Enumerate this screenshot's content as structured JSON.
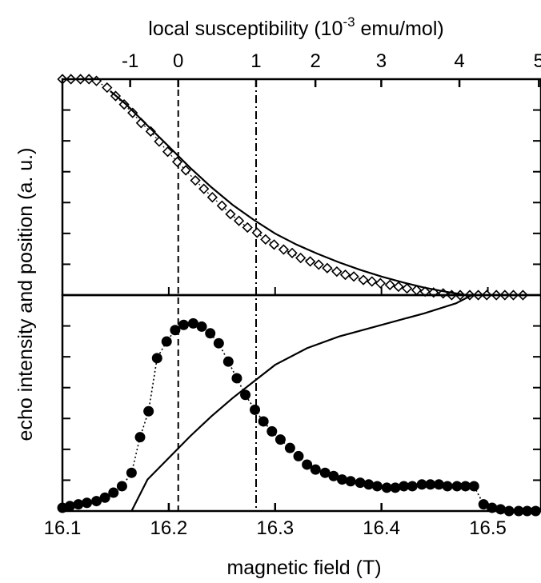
{
  "chart_data": {
    "type": "scatter",
    "xlabel": "magnetic field  (T)",
    "ylabel": "echo intensity and position  (a. u.)",
    "top_xlabel_main": "local susceptibility (10",
    "top_xlabel_exp": "-3",
    "top_xlabel_tail": " emu/mol)",
    "xlim": [
      16.1,
      16.55
    ],
    "x_ticks": [
      {
        "value": 16.1,
        "label": "16.1"
      },
      {
        "value": 16.2,
        "label": "16.2"
      },
      {
        "value": 16.3,
        "label": "16.3"
      },
      {
        "value": 16.4,
        "label": "16.4"
      },
      {
        "value": 16.5,
        "label": "16.5"
      }
    ],
    "top_ticks": [
      {
        "field": 16.1637,
        "label": "-1"
      },
      {
        "field": 16.2089,
        "label": "0"
      },
      {
        "field": 16.2821,
        "label": "1"
      },
      {
        "field": 16.3379,
        "label": "2"
      },
      {
        "field": 16.3998,
        "label": "3"
      },
      {
        "field": 16.4733,
        "label": "4"
      },
      {
        "field": 16.548,
        "label": "5"
      }
    ],
    "reference_lines": [
      {
        "field": 16.2089,
        "style": "dashed"
      },
      {
        "field": 16.2821,
        "style": "dash-dot"
      }
    ],
    "panels": [
      {
        "position": "top",
        "ylim": [
          0,
          1
        ],
        "series": [
          {
            "marker": "open-diamond",
            "x": [
              16.1,
              16.108,
              16.117,
              16.125,
              16.132,
              16.142,
              16.15,
              16.158,
              16.166,
              16.174,
              16.183,
              16.191,
              16.199,
              16.208,
              16.216,
              16.225,
              16.233,
              16.241,
              16.25,
              16.258,
              16.266,
              16.274,
              16.283,
              16.291,
              16.299,
              16.308,
              16.316,
              16.324,
              16.333,
              16.341,
              16.349,
              16.358,
              16.366,
              16.374,
              16.383,
              16.391,
              16.399,
              16.408,
              16.416,
              16.424,
              16.433,
              16.441,
              16.449,
              16.458,
              16.466,
              16.474,
              16.483,
              16.491,
              16.499,
              16.508,
              16.516,
              16.524,
              16.533
            ],
            "y": [
              1.0,
              1.0,
              1.0,
              1.0,
              0.992,
              0.961,
              0.922,
              0.883,
              0.844,
              0.797,
              0.758,
              0.711,
              0.664,
              0.617,
              0.578,
              0.531,
              0.492,
              0.453,
              0.414,
              0.375,
              0.344,
              0.313,
              0.289,
              0.258,
              0.234,
              0.211,
              0.195,
              0.172,
              0.156,
              0.141,
              0.125,
              0.109,
              0.094,
              0.086,
              0.07,
              0.063,
              0.055,
              0.047,
              0.039,
              0.031,
              0.023,
              0.016,
              0.012,
              0.008,
              0.0,
              0.0,
              0.0,
              0.0,
              0.0,
              0.0,
              0.0,
              0.0,
              0.0
            ]
          },
          {
            "marker": "solid-line",
            "x": [
              16.145,
              16.16,
              16.18,
              16.2,
              16.22,
              16.24,
              16.26,
              16.28,
              16.3,
              16.32,
              16.34,
              16.36,
              16.38,
              16.4,
              16.42,
              16.44,
              16.46,
              16.48
            ],
            "y": [
              0.945,
              0.883,
              0.785,
              0.688,
              0.59,
              0.5,
              0.418,
              0.348,
              0.285,
              0.234,
              0.191,
              0.152,
              0.117,
              0.086,
              0.059,
              0.035,
              0.016,
              0.0
            ]
          }
        ]
      },
      {
        "position": "bottom",
        "ylim": [
          0,
          1
        ],
        "series": [
          {
            "marker": "filled-circle",
            "x": [
              16.1,
              16.107,
              16.115,
              16.123,
              16.132,
              16.14,
              16.148,
              16.156,
              16.165,
              16.173,
              16.181,
              16.189,
              16.198,
              16.206,
              16.214,
              16.223,
              16.231,
              16.239,
              16.247,
              16.256,
              16.264,
              16.272,
              16.281,
              16.289,
              16.297,
              16.305,
              16.314,
              16.322,
              16.33,
              16.338,
              16.347,
              16.355,
              16.363,
              16.371,
              16.38,
              16.388,
              16.396,
              16.405,
              16.413,
              16.421,
              16.429,
              16.438,
              16.446,
              16.454,
              16.462,
              16.471,
              16.479,
              16.487,
              16.496,
              16.504,
              16.512,
              16.52,
              16.529,
              16.537,
              16.545
            ],
            "y": [
              0.015,
              0.023,
              0.031,
              0.038,
              0.046,
              0.062,
              0.085,
              0.115,
              0.177,
              0.342,
              0.462,
              0.708,
              0.785,
              0.838,
              0.862,
              0.869,
              0.854,
              0.823,
              0.777,
              0.692,
              0.615,
              0.538,
              0.469,
              0.415,
              0.369,
              0.331,
              0.292,
              0.254,
              0.215,
              0.192,
              0.177,
              0.162,
              0.146,
              0.138,
              0.131,
              0.123,
              0.115,
              0.108,
              0.108,
              0.115,
              0.115,
              0.123,
              0.123,
              0.123,
              0.115,
              0.115,
              0.115,
              0.115,
              0.031,
              0.015,
              0.008,
              0.0,
              0.0,
              0.0,
              0.0
            ]
          },
          {
            "marker": "solid-line",
            "x": [
              16.165,
              16.18,
              16.2,
              16.22,
              16.24,
              16.26,
              16.28,
              16.3,
              16.33,
              16.36,
              16.4,
              16.44,
              16.47,
              16.485
            ],
            "y": [
              0.0,
              0.146,
              0.246,
              0.346,
              0.438,
              0.523,
              0.6,
              0.677,
              0.754,
              0.808,
              0.862,
              0.915,
              0.962,
              1.0
            ]
          }
        ]
      }
    ],
    "grid": false
  }
}
